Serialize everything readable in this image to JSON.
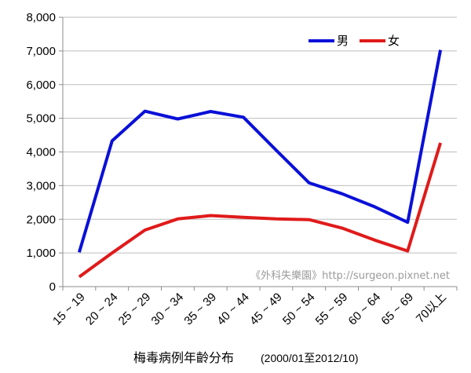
{
  "chart_data": {
    "type": "line",
    "categories": [
      "15 ~ 19",
      "20 ~ 24",
      "25 ~ 29",
      "30 ~ 34",
      "35 ~ 39",
      "40 ~ 44",
      "45 ~ 49",
      "50 ~ 54",
      "55 ~ 59",
      "60 ~ 64",
      "65 ~ 69",
      "70以上"
    ],
    "series": [
      {
        "name": "男",
        "color": "#0a10d8",
        "values": [
          1020,
          4330,
          5210,
          4980,
          5200,
          5030,
          4050,
          3080,
          2760,
          2370,
          1910,
          7030
        ]
      },
      {
        "name": "女",
        "color": "#e01a1a",
        "values": [
          290,
          1000,
          1680,
          2010,
          2110,
          2060,
          2010,
          1990,
          1740,
          1380,
          1060,
          4270
        ]
      }
    ],
    "ylim": [
      0,
      8000
    ],
    "yticks": [
      "0",
      "1,000",
      "2,000",
      "3,000",
      "4,000",
      "5,000",
      "6,000",
      "7,000",
      "8,000"
    ],
    "grid": true,
    "legend_position": "top-right",
    "xlabel": "梅毒病例年齡分布",
    "xlabel_sub": "(2000/01至2012/10)",
    "ylabel": "",
    "watermark": "《外科失樂園》http://surgeon.pixnet.net"
  }
}
